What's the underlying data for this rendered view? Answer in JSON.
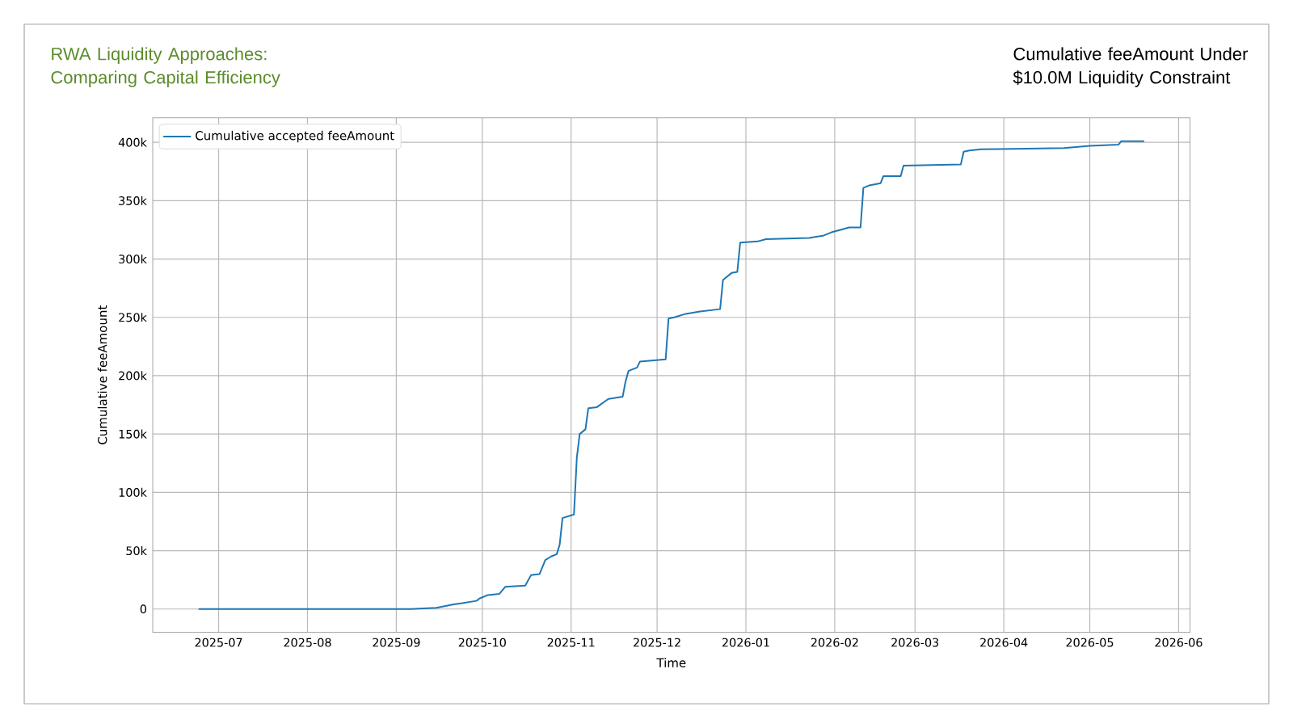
{
  "chart_data": {
    "type": "line",
    "title": "Cumulative feeAmount Under $10.0M Liquidity Constraint",
    "subtitle": "RWA Liquidity Approaches: Comparing Capital Efficiency",
    "xlabel": "Time",
    "ylabel": "Cumulative feeAmount",
    "xlim": [
      "2025-06-08",
      "2026-06-05"
    ],
    "xticks": [
      "2025-07",
      "2025-08",
      "2025-09",
      "2025-10",
      "2025-11",
      "2025-12",
      "2026-01",
      "2026-02",
      "2026-03",
      "2026-04",
      "2026-05",
      "2026-06"
    ],
    "ylim": [
      -20000,
      421000
    ],
    "yticks": [
      0,
      {
        "value": 50000,
        "label": "50k"
      },
      {
        "value": 100000,
        "label": "100k"
      },
      {
        "value": 150000,
        "label": "150k"
      },
      {
        "value": 200000,
        "label": "200k"
      },
      {
        "value": 250000,
        "label": "250k"
      },
      {
        "value": 300000,
        "label": "300k"
      },
      {
        "value": 350000,
        "label": "350k"
      },
      {
        "value": 400000,
        "label": "400k"
      }
    ],
    "grid": true,
    "legend": "top left",
    "series": [
      {
        "name": "Cumulative accepted feeAmount",
        "color": "#1f77b4",
        "x": [
          "2025-06-24",
          "2025-09-06",
          "2025-09-15",
          "2025-09-21",
          "2025-09-24",
          "2025-09-29",
          "2025-09-30",
          "2025-10-03",
          "2025-10-07",
          "2025-10-09",
          "2025-10-16",
          "2025-10-18",
          "2025-10-21",
          "2025-10-23",
          "2025-10-25",
          "2025-10-27",
          "2025-10-28",
          "2025-10-29",
          "2025-11-02",
          "2025-11-03",
          "2025-11-04",
          "2025-11-06",
          "2025-11-07",
          "2025-11-10",
          "2025-11-14",
          "2025-11-19",
          "2025-11-20",
          "2025-11-21",
          "2025-11-24",
          "2025-11-25",
          "2025-12-04",
          "2025-12-05",
          "2025-12-07",
          "2025-12-11",
          "2025-12-16",
          "2025-12-23",
          "2025-12-24",
          "2025-12-27",
          "2025-12-29",
          "2025-12-30",
          "2026-01-05",
          "2026-01-08",
          "2026-01-23",
          "2026-01-28",
          "2026-01-31",
          "2026-02-03",
          "2026-02-06",
          "2026-02-10",
          "2026-02-11",
          "2026-02-13",
          "2026-02-17",
          "2026-02-18",
          "2026-02-24",
          "2026-02-25",
          "2026-03-17",
          "2026-03-18",
          "2026-03-20",
          "2026-03-24",
          "2026-04-22",
          "2026-05-01",
          "2026-05-11",
          "2026-05-12",
          "2026-05-20"
        ],
        "values": [
          0,
          0,
          1000,
          4000,
          5000,
          7000,
          9000,
          12000,
          13000,
          19000,
          20000,
          29000,
          30000,
          42000,
          45000,
          47000,
          55000,
          78000,
          81000,
          130000,
          150000,
          154000,
          172000,
          173000,
          180000,
          182000,
          195000,
          204000,
          207000,
          212000,
          214000,
          249000,
          250000,
          253000,
          255000,
          257000,
          282000,
          288000,
          289000,
          314000,
          315000,
          317000,
          318000,
          320000,
          323000,
          325000,
          327000,
          327000,
          361000,
          363000,
          365000,
          371000,
          371000,
          380000,
          381000,
          392000,
          393000,
          394000,
          395000,
          397000,
          398000,
          401000,
          401000
        ]
      }
    ]
  }
}
